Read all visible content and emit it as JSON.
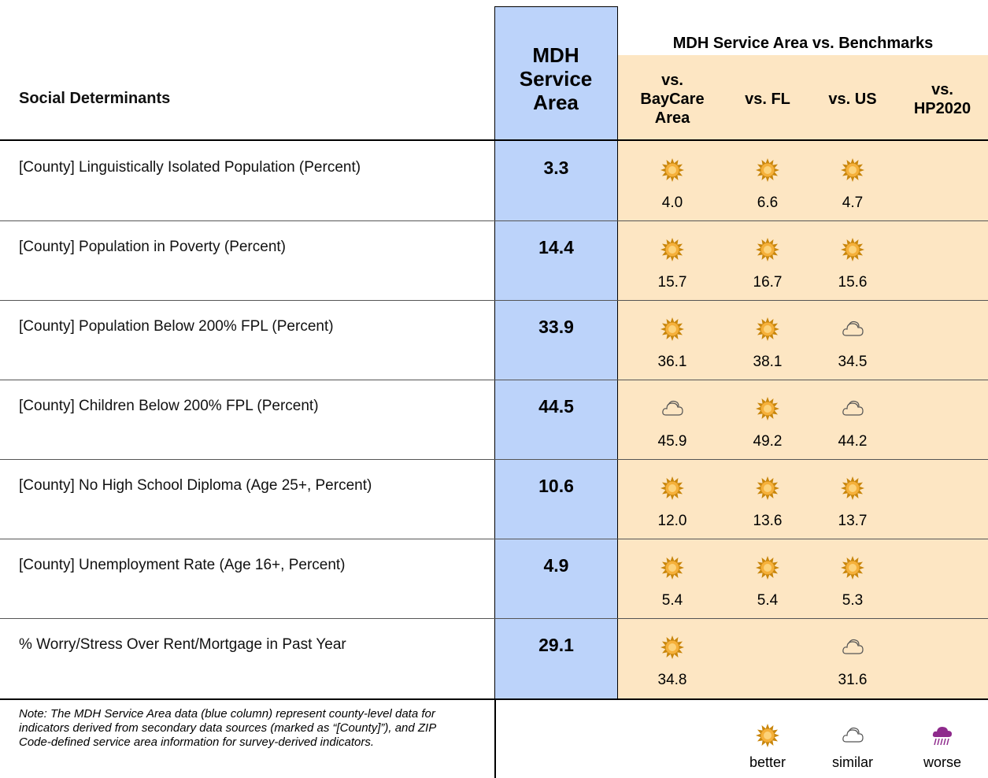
{
  "header": {
    "indicator": "Social Determinants",
    "service_area": "MDH Service Area",
    "benchmarks_title": "MDH Service Area vs. Benchmarks",
    "benchmarks": [
      "vs. BayCare Area",
      "vs. FL",
      "vs. US",
      "vs. HP2020"
    ]
  },
  "rows": [
    {
      "label": "[County] Linguistically Isolated Population (Percent)",
      "value": "3.3",
      "benchmarks": [
        {
          "value": "4.0",
          "icon": "better"
        },
        {
          "value": "6.6",
          "icon": "better"
        },
        {
          "value": "4.7",
          "icon": "better"
        },
        null
      ]
    },
    {
      "label": "[County] Population in Poverty (Percent)",
      "value": "14.4",
      "benchmarks": [
        {
          "value": "15.7",
          "icon": "better"
        },
        {
          "value": "16.7",
          "icon": "better"
        },
        {
          "value": "15.6",
          "icon": "better"
        },
        null
      ]
    },
    {
      "label": "[County] Population Below 200% FPL (Percent)",
      "value": "33.9",
      "benchmarks": [
        {
          "value": "36.1",
          "icon": "better"
        },
        {
          "value": "38.1",
          "icon": "better"
        },
        {
          "value": "34.5",
          "icon": "similar"
        },
        null
      ]
    },
    {
      "label": "[County] Children Below 200% FPL (Percent)",
      "value": "44.5",
      "benchmarks": [
        {
          "value": "45.9",
          "icon": "similar"
        },
        {
          "value": "49.2",
          "icon": "better"
        },
        {
          "value": "44.2",
          "icon": "similar"
        },
        null
      ]
    },
    {
      "label": "[County] No High School Diploma (Age 25+, Percent)",
      "value": "10.6",
      "benchmarks": [
        {
          "value": "12.0",
          "icon": "better"
        },
        {
          "value": "13.6",
          "icon": "better"
        },
        {
          "value": "13.7",
          "icon": "better"
        },
        null
      ]
    },
    {
      "label": "[County] Unemployment Rate (Age 16+, Percent)",
      "value": "4.9",
      "benchmarks": [
        {
          "value": "5.4",
          "icon": "better"
        },
        {
          "value": "5.4",
          "icon": "better"
        },
        {
          "value": "5.3",
          "icon": "better"
        },
        null
      ]
    },
    {
      "label": "% Worry/Stress Over Rent/Mortgage in Past Year",
      "value": "29.1",
      "benchmarks": [
        {
          "value": "34.8",
          "icon": "better"
        },
        null,
        {
          "value": "31.6",
          "icon": "similar"
        },
        null
      ]
    }
  ],
  "note": "Note: The MDH Service Area data (blue column) represent county-level data for indicators derived from secondary data sources (marked as “[County]”), and ZIP Code-defined service area information for survey-derived indicators.",
  "legend": [
    {
      "icon": "better",
      "label": "better"
    },
    {
      "icon": "similar",
      "label": "similar"
    },
    {
      "icon": "worse",
      "label": "worse"
    }
  ]
}
